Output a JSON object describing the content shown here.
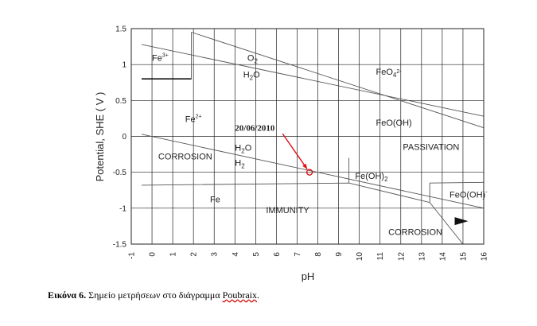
{
  "chart_data": {
    "type": "line",
    "xlabel": "pH",
    "ylabel": "Potential, SHE ( V )",
    "xlim": [
      -1,
      16
    ],
    "ylim": [
      -1.5,
      1.5
    ],
    "x_ticks": [
      -1,
      0,
      1,
      2,
      3,
      4,
      5,
      6,
      7,
      8,
      9,
      10,
      11,
      12,
      13,
      14,
      15,
      16
    ],
    "y_ticks": [
      1.5,
      1,
      0.5,
      0,
      -0.5,
      -1,
      -1.5
    ],
    "y_tick_labels": [
      "1.5",
      "1",
      "0.5",
      "0",
      "-0.5",
      "-1",
      "-1.5"
    ],
    "grid": true,
    "series": [
      {
        "points": [
          [
            -0.5,
            1.28
          ],
          [
            16,
            0.28
          ]
        ]
      },
      {
        "points": [
          [
            -0.5,
            0.03
          ],
          [
            16,
            -1.0
          ]
        ]
      },
      {
        "points": [
          [
            -0.5,
            0.8
          ],
          [
            1.9,
            0.8
          ]
        ]
      },
      {
        "points": [
          [
            1.9,
            0.8
          ],
          [
            1.9,
            1.45
          ]
        ]
      },
      {
        "points": [
          [
            1.9,
            1.45
          ],
          [
            16,
            0.12
          ]
        ]
      },
      {
        "points": [
          [
            -0.5,
            -0.68
          ],
          [
            9.5,
            -0.65
          ],
          [
            13.4,
            -0.92
          ],
          [
            15,
            -1.5
          ]
        ]
      },
      {
        "points": [
          [
            9.5,
            -0.3
          ],
          [
            9.5,
            -0.65
          ]
        ]
      },
      {
        "points": [
          [
            13.4,
            -0.65
          ],
          [
            13.4,
            -0.92
          ]
        ]
      },
      {
        "points": [
          [
            13.4,
            -0.65
          ],
          [
            16,
            -0.64
          ]
        ]
      }
    ],
    "labels": [
      {
        "text": "Fe",
        "sup": "3+",
        "x": 0.0,
        "y": 1.05
      },
      {
        "text": "O",
        "sub": "2",
        "x": 4.6,
        "y": 1.05
      },
      {
        "text": "H",
        "sub": "2",
        "after": "O",
        "x": 4.4,
        "y": 0.82
      },
      {
        "text": "FeO",
        "sub": "4",
        "sup": "2-",
        "x": 10.8,
        "y": 0.86
      },
      {
        "text": "Fe",
        "sup": "2+",
        "x": 1.6,
        "y": 0.2
      },
      {
        "text": "FeO(OH)",
        "x": 10.8,
        "y": 0.15
      },
      {
        "text": "H",
        "sub": "2",
        "after": "O",
        "x": 4.0,
        "y": -0.2
      },
      {
        "text": "H",
        "sub": "2",
        "x": 4.0,
        "y": -0.41
      },
      {
        "text": "CORROSION",
        "x": 0.3,
        "y": -0.32
      },
      {
        "text": "PASSIVATION",
        "x": 12.1,
        "y": -0.19
      },
      {
        "text": "Fe(OH)",
        "sub": "2",
        "x": 9.8,
        "y": -0.59
      },
      {
        "text": "FeO(OH)",
        "sup": "-",
        "x": 14.35,
        "y": -0.85
      },
      {
        "text": "Fe",
        "x": 2.8,
        "y": -0.92
      },
      {
        "text": "IMMUNITY",
        "x": 5.5,
        "y": -1.07
      },
      {
        "text": "CORROSION",
        "x": 11.4,
        "y": -1.37
      }
    ],
    "annotation": {
      "text": "20/06/2010",
      "point": [
        7.6,
        -0.5
      ],
      "text_pos": [
        4.0,
        0.08
      ],
      "color": "#e01010"
    },
    "arrow": {
      "from": [
        14.6,
        -1.18
      ],
      "to": [
        15.1,
        -1.18
      ]
    }
  },
  "caption": {
    "label": "Εικόνα 6.",
    "text": "Σημείο μετρήσεων στο διάγραμμα",
    "link": "Poubraix",
    "end": "."
  }
}
